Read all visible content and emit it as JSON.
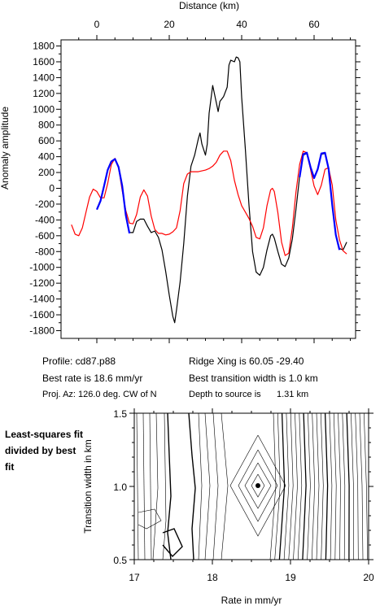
{
  "top_panel": {
    "x_axis_title": "Distance (km)",
    "y_axis_title": "Anomaly amplitude",
    "x_ticks": [
      0,
      20,
      40,
      60
    ],
    "y_ticks": [
      1800,
      1600,
      1400,
      1200,
      1000,
      800,
      600,
      400,
      200,
      0,
      -200,
      -400,
      -600,
      -800,
      -1000,
      -1200,
      -1400,
      -1600,
      -1800
    ]
  },
  "info": {
    "profile": "Profile: cd87.p88",
    "best_rate": "Best rate is 18.6 mm/yr",
    "proj_az": "Proj. Az: 126.0 deg. CW of N",
    "ridge_xing": "Ridge Xing is 60.05 -29.40",
    "transition_width": "Best transition width is 1.0 km",
    "depth_label": "Depth to source is",
    "depth_value": "1.31 km"
  },
  "bottom_panel": {
    "note": "Least-squares fit divided by best fit",
    "x_axis_title": "Rate in mm/yr",
    "y_axis_title": "Transition width in km",
    "x_ticks": [
      "17",
      "18",
      "19",
      "20"
    ],
    "y_ticks": [
      "1.5",
      "1.0",
      "0.5"
    ]
  },
  "chart_data": [
    {
      "type": "line",
      "title": "",
      "xlabel": "Distance (km)",
      "ylabel": "Anomaly amplitude",
      "xlim": [
        -7,
        70
      ],
      "ylim": [
        -1800,
        1800
      ],
      "series": [
        {
          "color": "#000000",
          "points": [
            [
              0,
              -260
            ],
            [
              1,
              -150
            ],
            [
              2,
              40
            ],
            [
              3,
              240
            ],
            [
              4,
              340
            ],
            [
              5,
              370
            ],
            [
              6,
              260
            ],
            [
              7,
              40
            ],
            [
              8,
              -330
            ],
            [
              9,
              -560
            ],
            [
              10,
              -560
            ],
            [
              11,
              -420
            ],
            [
              12,
              -390
            ],
            [
              13,
              -390
            ],
            [
              14,
              -480
            ],
            [
              15,
              -560
            ],
            [
              16,
              -540
            ],
            [
              17,
              -620
            ],
            [
              18,
              -780
            ],
            [
              19,
              -1050
            ],
            [
              20,
              -1350
            ],
            [
              21,
              -1620
            ],
            [
              21.5,
              -1700
            ],
            [
              22,
              -1540
            ],
            [
              23,
              -1180
            ],
            [
              24,
              -700
            ],
            [
              25,
              -100
            ],
            [
              26,
              280
            ],
            [
              27,
              420
            ],
            [
              28,
              620
            ],
            [
              28.5,
              700
            ],
            [
              29,
              560
            ],
            [
              30,
              420
            ],
            [
              30.5,
              560
            ],
            [
              31,
              950
            ],
            [
              32,
              1300
            ],
            [
              33,
              1080
            ],
            [
              33.5,
              970
            ],
            [
              34,
              1100
            ],
            [
              35,
              1160
            ],
            [
              36,
              1280
            ],
            [
              36.5,
              1560
            ],
            [
              37,
              1620
            ],
            [
              38,
              1600
            ],
            [
              38.5,
              1660
            ],
            [
              39,
              1650
            ],
            [
              39.5,
              1600
            ],
            [
              40,
              1150
            ],
            [
              41,
              500
            ],
            [
              42,
              -200
            ],
            [
              43,
              -800
            ],
            [
              44,
              -1060
            ],
            [
              45,
              -1100
            ],
            [
              46,
              -1000
            ],
            [
              47,
              -780
            ],
            [
              48,
              -600
            ],
            [
              48.5,
              -580
            ],
            [
              49,
              -630
            ],
            [
              50,
              -800
            ],
            [
              51,
              -960
            ],
            [
              52,
              -990
            ],
            [
              53,
              -880
            ],
            [
              54,
              -640
            ],
            [
              55,
              -260
            ],
            [
              56,
              150
            ],
            [
              57,
              420
            ],
            [
              58,
              440
            ],
            [
              59,
              260
            ],
            [
              60,
              130
            ],
            [
              61,
              250
            ],
            [
              62,
              430
            ],
            [
              63,
              440
            ],
            [
              64,
              250
            ],
            [
              65,
              -200
            ],
            [
              66,
              -580
            ],
            [
              67,
              -760
            ],
            [
              68,
              -780
            ],
            [
              69,
              -680
            ]
          ]
        },
        {
          "color": "#ff0000",
          "points": [
            [
              -7,
              -460
            ],
            [
              -6,
              -580
            ],
            [
              -5,
              -600
            ],
            [
              -4,
              -500
            ],
            [
              -3,
              -300
            ],
            [
              -2,
              -110
            ],
            [
              -1,
              -10
            ],
            [
              0,
              -40
            ],
            [
              1,
              -120
            ],
            [
              2,
              -120
            ],
            [
              3,
              60
            ],
            [
              4,
              300
            ],
            [
              5,
              380
            ],
            [
              6,
              260
            ],
            [
              7,
              -30
            ],
            [
              8,
              -280
            ],
            [
              9,
              -440
            ],
            [
              10,
              -450
            ],
            [
              11,
              -330
            ],
            [
              12,
              -110
            ],
            [
              13,
              -20
            ],
            [
              14,
              -100
            ],
            [
              15,
              -350
            ],
            [
              16,
              -520
            ],
            [
              17,
              -570
            ],
            [
              18,
              -570
            ],
            [
              19,
              -590
            ],
            [
              20,
              -580
            ],
            [
              21,
              -550
            ],
            [
              22,
              -500
            ],
            [
              23,
              -280
            ],
            [
              24,
              60
            ],
            [
              25,
              180
            ],
            [
              26,
              210
            ],
            [
              27,
              210
            ],
            [
              28,
              210
            ],
            [
              29,
              220
            ],
            [
              30,
              230
            ],
            [
              31,
              250
            ],
            [
              32,
              280
            ],
            [
              33,
              330
            ],
            [
              34,
              420
            ],
            [
              35,
              470
            ],
            [
              36,
              470
            ],
            [
              37,
              350
            ],
            [
              38,
              100
            ],
            [
              39,
              -80
            ],
            [
              40,
              -220
            ],
            [
              41,
              -300
            ],
            [
              42,
              -380
            ],
            [
              43,
              -480
            ],
            [
              44,
              -620
            ],
            [
              45,
              -640
            ],
            [
              46,
              -500
            ],
            [
              47,
              -220
            ],
            [
              48,
              -20
            ],
            [
              48.5,
              0
            ],
            [
              49,
              -40
            ],
            [
              50,
              -310
            ],
            [
              51,
              -680
            ],
            [
              52,
              -850
            ],
            [
              53,
              -820
            ],
            [
              54,
              -500
            ],
            [
              55,
              -40
            ],
            [
              56,
              300
            ],
            [
              57,
              470
            ],
            [
              58,
              450
            ],
            [
              59,
              240
            ],
            [
              60,
              30
            ],
            [
              61,
              -80
            ],
            [
              62,
              40
            ],
            [
              63,
              240
            ],
            [
              64,
              260
            ],
            [
              65,
              40
            ],
            [
              66,
              -400
            ],
            [
              67,
              -650
            ],
            [
              68,
              -790
            ],
            [
              69,
              -830
            ]
          ]
        },
        {
          "color": "#0000ff",
          "points": [
            [
              0,
              -270
            ],
            [
              1,
              -160
            ],
            [
              2,
              30
            ],
            [
              3,
              230
            ],
            [
              4,
              340
            ],
            [
              5,
              370
            ],
            [
              6,
              270
            ],
            [
              7,
              30
            ],
            [
              8,
              -340
            ],
            [
              9,
              -570
            ]
          ]
        },
        {
          "color": "#0000ff",
          "points": [
            [
              56,
              140
            ],
            [
              57,
              430
            ],
            [
              58,
              450
            ],
            [
              59,
              270
            ],
            [
              60,
              130
            ],
            [
              61,
              240
            ],
            [
              62,
              440
            ],
            [
              63,
              450
            ],
            [
              64,
              250
            ],
            [
              65,
              -210
            ],
            [
              66,
              -590
            ],
            [
              67,
              -780
            ]
          ]
        }
      ]
    },
    {
      "type": "contour",
      "title": "",
      "xlabel": "Rate in mm/yr",
      "ylabel": "Transition width in km",
      "xlim": [
        17,
        20
      ],
      "ylim": [
        0.5,
        1.5
      ],
      "best_fit_point": [
        18.6,
        1.0
      ]
    }
  ]
}
